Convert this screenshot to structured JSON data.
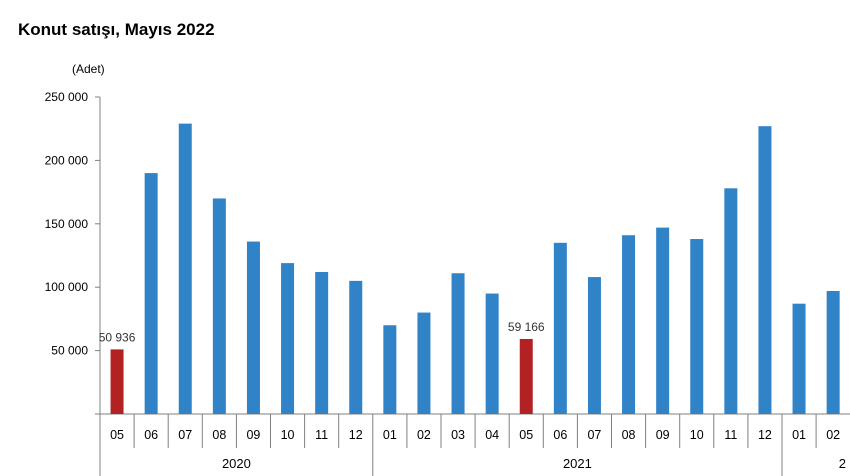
{
  "chart_data": {
    "type": "bar",
    "title": "Konut satışı, Mayıs 2022",
    "unit_label": "(Adet)",
    "ylabel": "",
    "xlabel": "",
    "ylim": [
      0,
      250000
    ],
    "y_ticks": [
      "250 000",
      "200 000",
      "150 000",
      "100 000",
      "50 000"
    ],
    "y_tick_values": [
      250000,
      200000,
      150000,
      100000,
      50000
    ],
    "grid": false,
    "categories": [
      "05",
      "06",
      "07",
      "08",
      "09",
      "10",
      "11",
      "12",
      "01",
      "02",
      "03",
      "04",
      "05",
      "06",
      "07",
      "08",
      "09",
      "10",
      "11",
      "12",
      "01",
      "02"
    ],
    "values": [
      50936,
      190000,
      229000,
      170000,
      136000,
      119000,
      112000,
      105000,
      70000,
      80000,
      111000,
      95000,
      59166,
      135000,
      108000,
      141000,
      147000,
      138000,
      178000,
      227000,
      87000,
      97000
    ],
    "highlighted_indices": [
      0,
      12
    ],
    "data_labels": [
      {
        "index": 0,
        "text": "50 936"
      },
      {
        "index": 12,
        "text": "59 166"
      }
    ],
    "year_groups": [
      {
        "label": "2020",
        "start": 0,
        "end": 7
      },
      {
        "label": "2021",
        "start": 8,
        "end": 19
      },
      {
        "label": "2",
        "start": 20,
        "end": 21
      }
    ],
    "colors": {
      "bar": "#3183c8",
      "highlight": "#b22222",
      "axis": "#808080"
    }
  }
}
